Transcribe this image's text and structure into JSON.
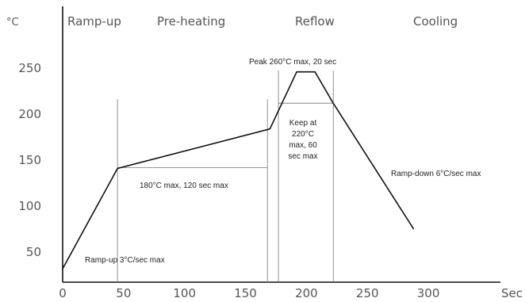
{
  "chart_data": {
    "type": "line",
    "title": "",
    "ylabel": "°C",
    "xlabel": "Sec",
    "xlim": [
      0,
      350
    ],
    "ylim": [
      25,
      275
    ],
    "x_ticks": [
      0,
      50,
      100,
      150,
      200,
      250,
      300
    ],
    "y_ticks": [
      50,
      100,
      150,
      200,
      250
    ],
    "phases": [
      "Ramp-up",
      "Pre-heating",
      "Reflow",
      "Cooling"
    ],
    "series": [
      {
        "x": [
          0,
          45,
          170,
          192,
          207,
          222,
          288
        ],
        "y": [
          32,
          141,
          184,
          246,
          246,
          212,
          75
        ]
      }
    ],
    "guides": {
      "vertical_x": [
        45,
        168,
        177,
        222
      ],
      "preheat_hold": {
        "y": 142,
        "x_from": 45,
        "x_to": 168
      },
      "reflow_hold": {
        "y": 212,
        "x_from": 177,
        "x_to": 222
      }
    },
    "annotations": {
      "peak": "Peak 260°C max, 20 sec",
      "keep_lines": [
        "Keep at",
        "220°C",
        "max, 60",
        "sec max"
      ],
      "preheat": "180°C max, 120 sec max",
      "ramp_down": "Ramp-down 6°C/sec max",
      "ramp_up": "Ramp-up 3°C/sec max"
    }
  }
}
